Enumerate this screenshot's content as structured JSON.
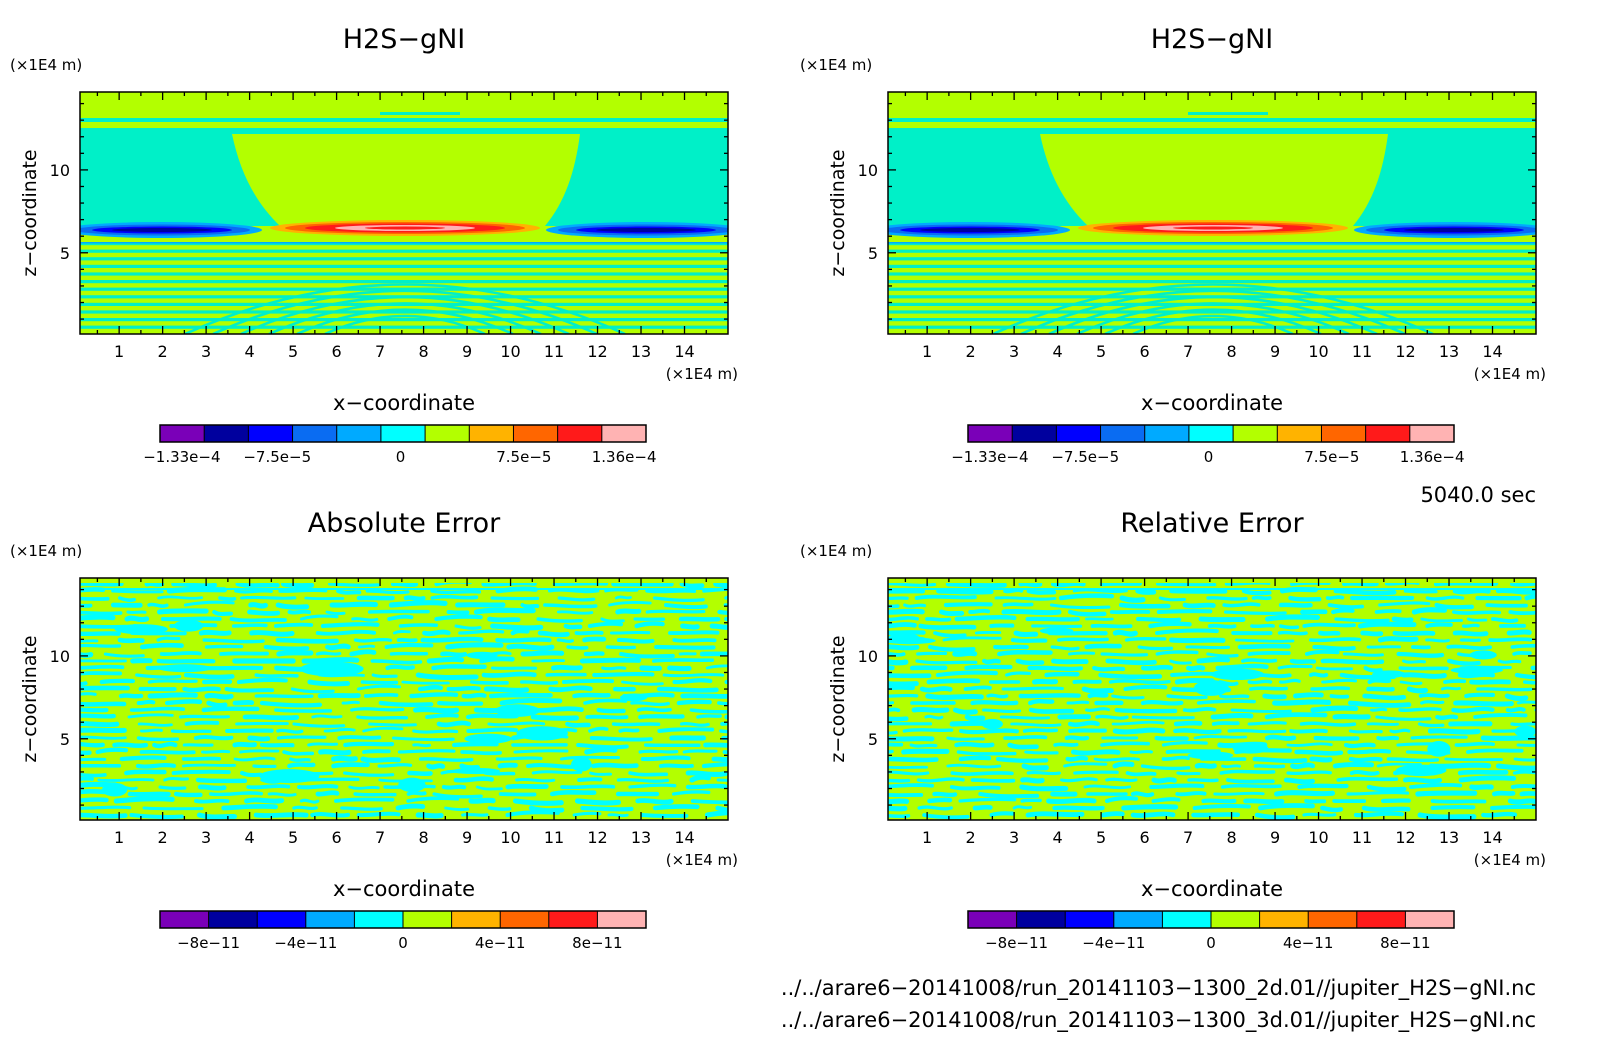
{
  "chart_data": [
    {
      "type": "heatmap",
      "title": "H2S−gNI",
      "xlabel": "x−coordinate",
      "ylabel": "z−coordinate",
      "x_unit": "(×1E4 m)",
      "y_unit": "(×1E4 m)",
      "xlim": [
        0.1,
        15.0
      ],
      "ylim": [
        0.1,
        14.7
      ],
      "x_ticks": [
        1,
        2,
        3,
        4,
        5,
        6,
        7,
        8,
        9,
        10,
        11,
        12,
        13,
        14
      ],
      "y_ticks": [
        5,
        10
      ],
      "colorbar": {
        "levels": 11,
        "labels": [
          {
            "label": "−1.33e−4",
            "value": -0.000133
          },
          {
            "label": "−7.5e−5",
            "value": -7.5e-05
          },
          {
            "label": "0",
            "value": 0
          },
          {
            "label": "7.5e−5",
            "value": 7.5e-05
          },
          {
            "label": "1.36e−4",
            "value": 0.000136
          }
        ]
      }
    },
    {
      "type": "heatmap",
      "title": "H2S−gNI",
      "xlabel": "x−coordinate",
      "ylabel": "z−coordinate",
      "x_unit": "(×1E4 m)",
      "y_unit": "(×1E4 m)",
      "xlim": [
        0.1,
        15.0
      ],
      "ylim": [
        0.1,
        14.7
      ],
      "x_ticks": [
        1,
        2,
        3,
        4,
        5,
        6,
        7,
        8,
        9,
        10,
        11,
        12,
        13,
        14
      ],
      "y_ticks": [
        5,
        10
      ],
      "colorbar": {
        "levels": 11,
        "labels": [
          {
            "label": "−1.33e−4",
            "value": -0.000133
          },
          {
            "label": "−7.5e−5",
            "value": -7.5e-05
          },
          {
            "label": "0",
            "value": 0
          },
          {
            "label": "7.5e−5",
            "value": 7.5e-05
          },
          {
            "label": "1.36e−4",
            "value": 0.000136
          }
        ]
      }
    },
    {
      "type": "heatmap",
      "title": "Absolute Error",
      "xlabel": "x−coordinate",
      "ylabel": "z−coordinate",
      "x_unit": "(×1E4 m)",
      "y_unit": "(×1E4 m)",
      "xlim": [
        0.1,
        15.0
      ],
      "ylim": [
        0.1,
        14.7
      ],
      "x_ticks": [
        1,
        2,
        3,
        4,
        5,
        6,
        7,
        8,
        9,
        10,
        11,
        12,
        13,
        14
      ],
      "y_ticks": [
        5,
        10
      ],
      "colorbar": {
        "levels": 10,
        "labels": [
          {
            "label": "−8e−11",
            "value": -8e-11
          },
          {
            "label": "−4e−11",
            "value": -4e-11
          },
          {
            "label": "0",
            "value": 0
          },
          {
            "label": "4e−11",
            "value": 4e-11
          },
          {
            "label": "8e−11",
            "value": 8e-11
          }
        ]
      }
    },
    {
      "type": "heatmap",
      "title": "Relative Error",
      "xlabel": "x−coordinate",
      "ylabel": "z−coordinate",
      "x_unit": "(×1E4 m)",
      "y_unit": "(×1E4 m)",
      "xlim": [
        0.1,
        15.0
      ],
      "ylim": [
        0.1,
        14.7
      ],
      "x_ticks": [
        1,
        2,
        3,
        4,
        5,
        6,
        7,
        8,
        9,
        10,
        11,
        12,
        13,
        14
      ],
      "y_ticks": [
        5,
        10
      ],
      "colorbar": {
        "levels": 10,
        "labels": [
          {
            "label": "−8e−11",
            "value": -8e-11
          },
          {
            "label": "−4e−11",
            "value": -4e-11
          },
          {
            "label": "0",
            "value": 0
          },
          {
            "label": "4e−11",
            "value": 4e-11
          },
          {
            "label": "8e−11",
            "value": 8e-11
          }
        ]
      }
    }
  ],
  "colors": {
    "palette": [
      "#7a00b8",
      "#00009e",
      "#0000ff",
      "#0a6cf2",
      "#00aaff",
      "#00ffff",
      "#b3ff00",
      "#ffb300",
      "#ff6600",
      "#ff1a1a",
      "#ffb3b3"
    ],
    "level_zero_cyan": "#00ffff",
    "level_zero_green": "#b3ff00",
    "mid_cyan": "#00f0c8",
    "frame": "#000000",
    "background": "#ffffff"
  },
  "annotations": {
    "time": "5040.0 sec",
    "files": [
      "../../arare6−20141008/run_20141103−1300_2d.01//jupiter_H2S−gNI.nc",
      "../../arare6−20141008/run_20141103−1300_3d.01//jupiter_H2S−gNI.nc"
    ]
  }
}
